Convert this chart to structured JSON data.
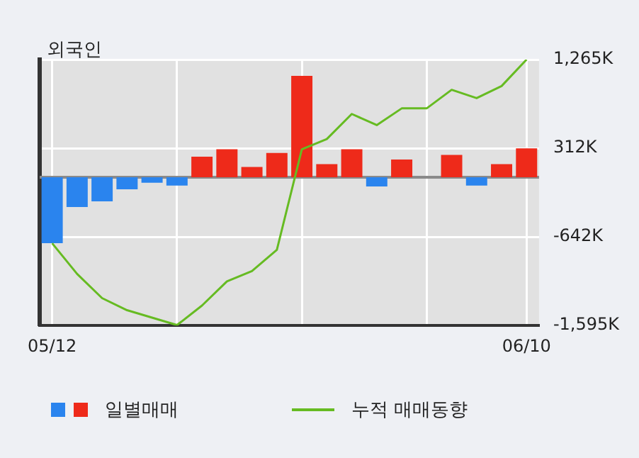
{
  "chart_data": {
    "type": "bar",
    "title": "외국인",
    "categories": [
      "05/12",
      null,
      null,
      null,
      null,
      null,
      null,
      null,
      null,
      null,
      null,
      null,
      null,
      null,
      null,
      null,
      null,
      null,
      null,
      "06/10"
    ],
    "series": [
      {
        "name": "일별매매",
        "colors": [
          "#2a84ee",
          "#2a84ee",
          "#2a84ee",
          "#2a84ee",
          "#2a84ee",
          "#2a84ee",
          "#ee2a1a",
          "#ee2a1a",
          "#ee2a1a",
          "#ee2a1a",
          "#ee2a1a",
          "#ee2a1a",
          "#ee2a1a",
          "#2a84ee",
          "#ee2a1a",
          "#ee2a1a",
          "#ee2a1a",
          "#2a84ee",
          "#ee2a1a",
          "#ee2a1a"
        ],
        "values": [
          -710,
          -320,
          -260,
          -130,
          -60,
          -90,
          220,
          300,
          110,
          260,
          1090,
          140,
          300,
          -100,
          190,
          0,
          240,
          -90,
          140,
          310
        ]
      },
      {
        "name": "누적 매매동향",
        "type": "line",
        "color": "#66bb22",
        "values": [
          -710,
          -1040,
          -1300,
          -1430,
          -1510,
          -1590,
          -1380,
          -1120,
          -1010,
          -780,
          300,
          410,
          680,
          560,
          740,
          740,
          940,
          850,
          980,
          1265
        ]
      }
    ],
    "ylim": [
      -1595,
      1265
    ],
    "yticks": [
      {
        "value": 1265,
        "label": "1,265K"
      },
      {
        "value": 312,
        "label": "312K"
      },
      {
        "value": -642,
        "label": "-642K"
      },
      {
        "value": -1595,
        "label": "-1,595K"
      }
    ],
    "grid": true,
    "legend": "bottom",
    "marker": "none"
  }
}
